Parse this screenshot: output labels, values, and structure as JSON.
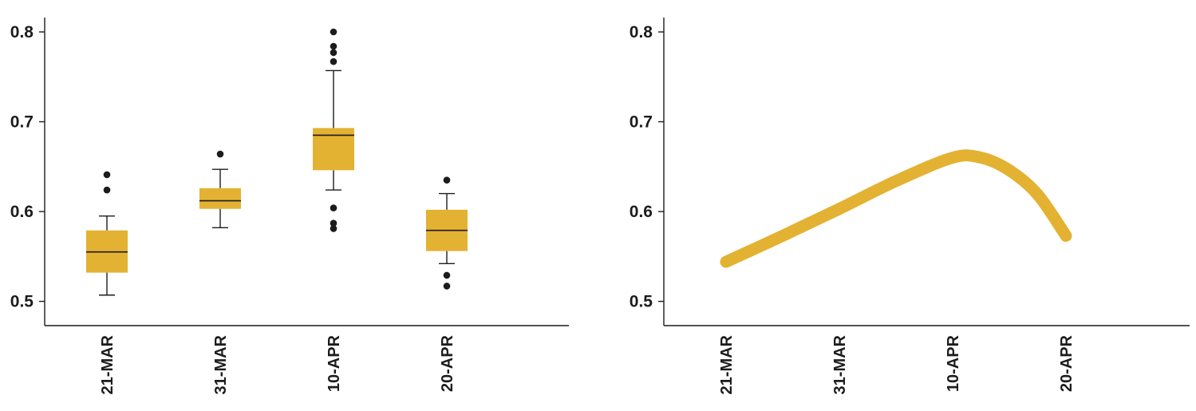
{
  "colors": {
    "box_fill": "#E3B232",
    "line": "#E3B232",
    "ink": "#1c1c1c"
  },
  "chart_data": [
    {
      "type": "box",
      "categories": [
        "21-MAR",
        "31-MAR",
        "10-APR",
        "20-APR"
      ],
      "ylim": [
        0.473,
        0.816
      ],
      "yticks": [
        "0.5",
        "0.6",
        "0.7",
        "0.8"
      ],
      "ytick_values": [
        0.5,
        0.6,
        0.7,
        0.8
      ],
      "title": "",
      "xlabel": "",
      "ylabel": "",
      "boxes": [
        {
          "category": "21-MAR",
          "whisker_low": 0.507,
          "q1": 0.532,
          "median": 0.555,
          "q3": 0.579,
          "whisker_high": 0.595,
          "outliers": [
            0.641,
            0.624
          ]
        },
        {
          "category": "31-MAR",
          "whisker_low": 0.582,
          "q1": 0.603,
          "median": 0.612,
          "q3": 0.626,
          "whisker_high": 0.647,
          "outliers": [
            0.664
          ]
        },
        {
          "category": "10-APR",
          "whisker_low": 0.624,
          "q1": 0.646,
          "median": 0.685,
          "q3": 0.693,
          "whisker_high": 0.757,
          "outliers": [
            0.8,
            0.784,
            0.777,
            0.767,
            0.604,
            0.587,
            0.581
          ]
        },
        {
          "category": "20-APR",
          "whisker_low": 0.542,
          "q1": 0.556,
          "median": 0.579,
          "q3": 0.602,
          "whisker_high": 0.62,
          "outliers": [
            0.635,
            0.529,
            0.517
          ]
        }
      ]
    },
    {
      "type": "line",
      "categories": [
        "21-MAR",
        "31-MAR",
        "10-APR",
        "20-APR"
      ],
      "ylim": [
        0.473,
        0.816
      ],
      "yticks": [
        "0.5",
        "0.6",
        "0.7",
        "0.8"
      ],
      "ytick_values": [
        0.5,
        0.6,
        0.7,
        0.8
      ],
      "title": "",
      "xlabel": "",
      "ylabel": "",
      "series": [
        {
          "x": [
            0,
            0.5,
            1,
            1.5,
            2,
            2.25,
            2.5,
            2.75,
            3
          ],
          "values": [
            0.544,
            0.573,
            0.603,
            0.634,
            0.66,
            0.66,
            0.646,
            0.619,
            0.573
          ]
        }
      ]
    }
  ]
}
